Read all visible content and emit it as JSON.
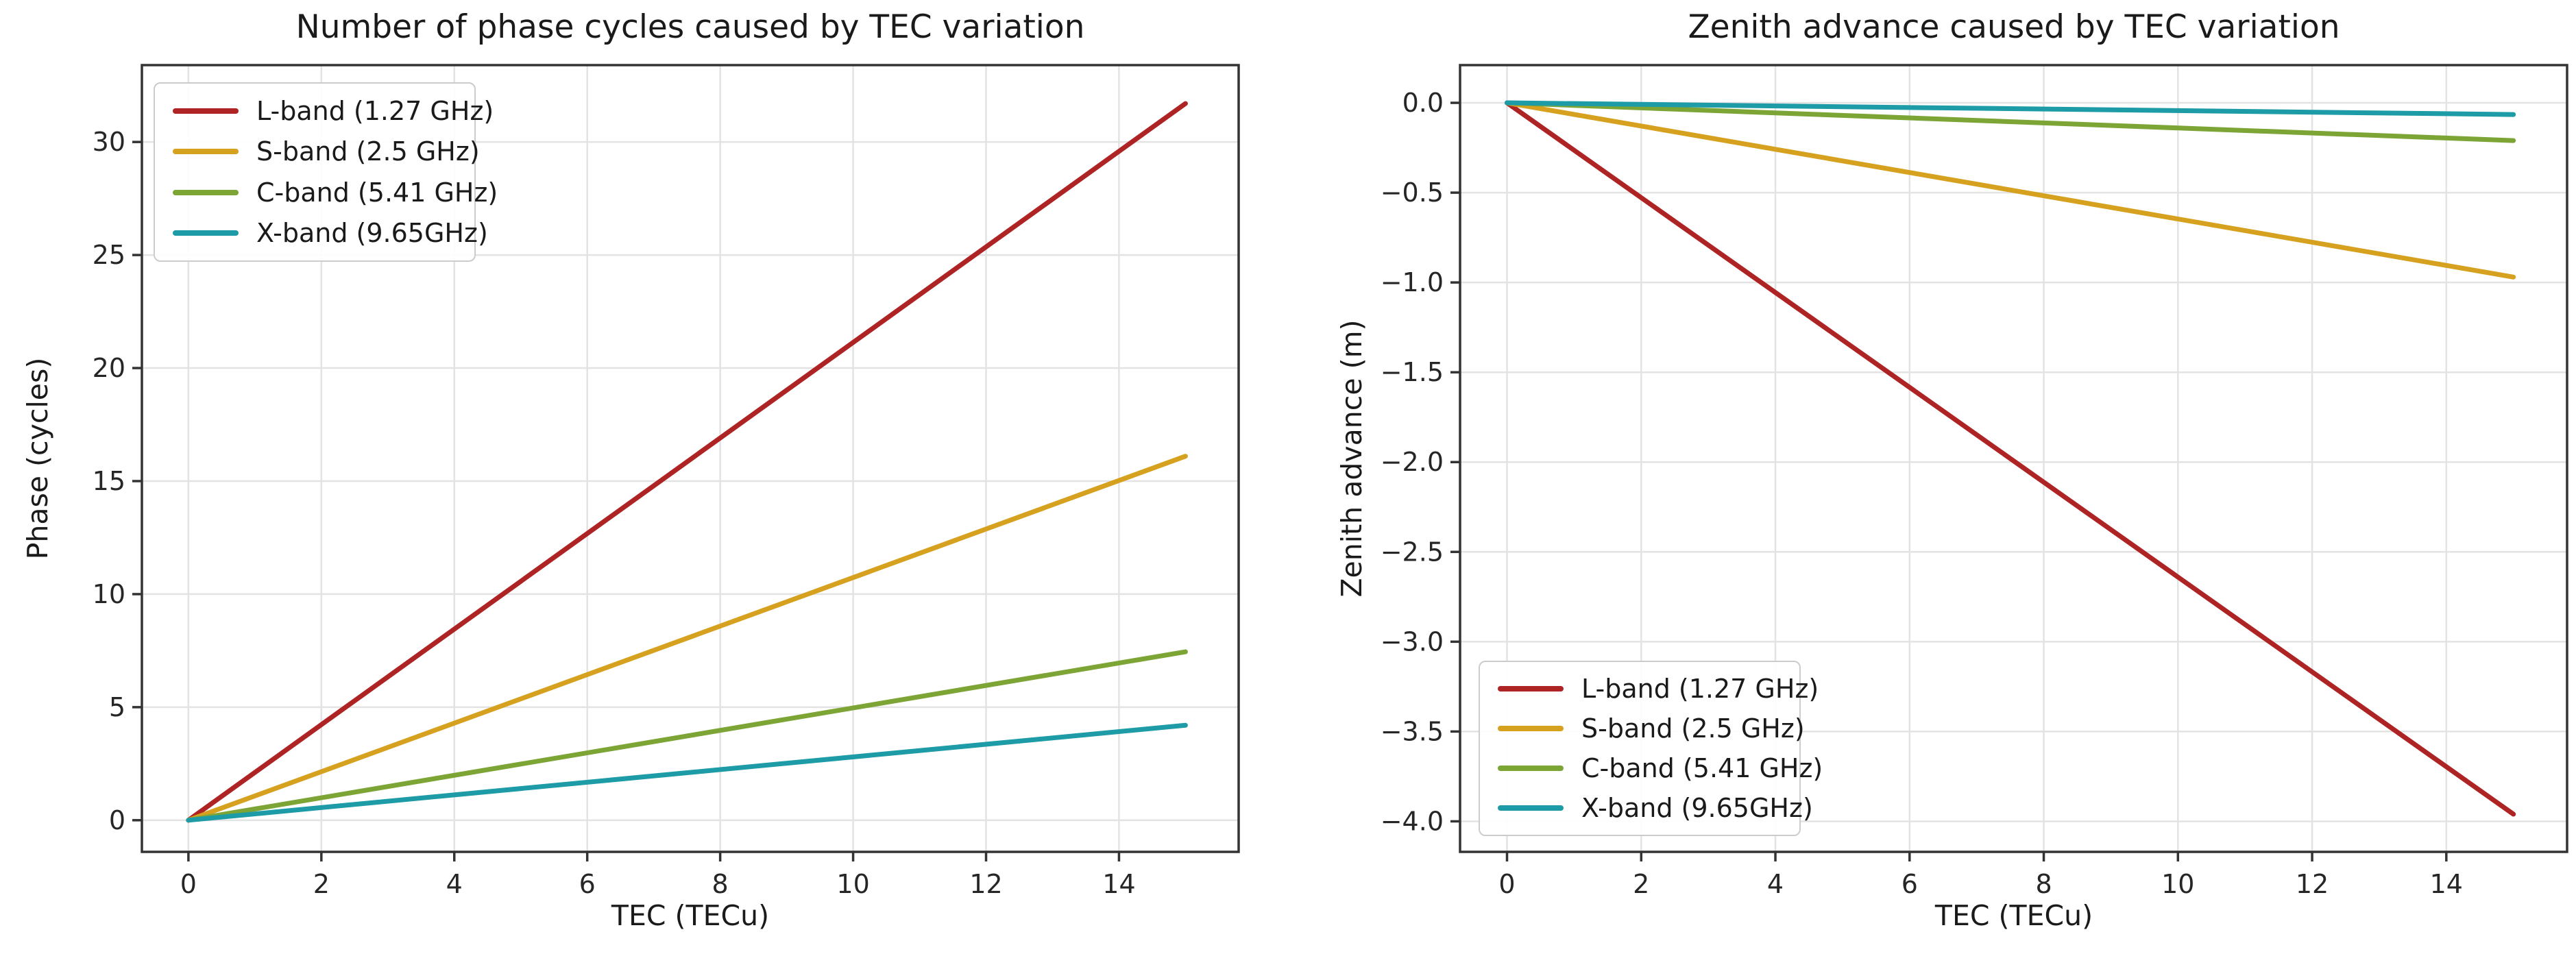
{
  "figure": {
    "background": "#ffffff"
  },
  "style": {
    "grid_color": "#e3e3e3",
    "spine_color": "#333333",
    "tick_color": "#333333",
    "text_color": "#262626",
    "legend_border": "#cccccc"
  },
  "chart_data": [
    {
      "type": "line",
      "title": "Number of phase cycles caused by TEC variation",
      "xlabel": "TEC (TECu)",
      "ylabel": "Phase (cycles)",
      "xlim": [
        -0.7,
        15.8
      ],
      "ylim": [
        -1.4,
        33.4
      ],
      "xticks": [
        0,
        2,
        4,
        6,
        8,
        10,
        12,
        14
      ],
      "yticks": [
        0,
        5,
        10,
        15,
        20,
        25,
        30
      ],
      "xtick_labels": [
        "0",
        "2",
        "4",
        "6",
        "8",
        "10",
        "12",
        "14"
      ],
      "ytick_labels": [
        "0",
        "5",
        "10",
        "15",
        "20",
        "25",
        "30"
      ],
      "grid": true,
      "legend_position": "upper left",
      "series": [
        {
          "name": "L-band (1.27 GHz)",
          "color": "#AE2323",
          "x": [
            0,
            15
          ],
          "y": [
            0,
            31.7
          ]
        },
        {
          "name": "S-band (2.5 GHz)",
          "color": "#D6A11E",
          "x": [
            0,
            15
          ],
          "y": [
            0,
            16.1
          ]
        },
        {
          "name": "C-band (5.41 GHz)",
          "color": "#7CA536",
          "x": [
            0,
            15
          ],
          "y": [
            0,
            7.45
          ]
        },
        {
          "name": "X-band (9.65GHz)",
          "color": "#1D9BA6",
          "x": [
            0,
            15
          ],
          "y": [
            0,
            4.2
          ]
        }
      ]
    },
    {
      "type": "line",
      "title": "Zenith advance caused by TEC variation",
      "xlabel": "TEC (TECu)",
      "ylabel": "Zenith advance (m)",
      "xlim": [
        -0.7,
        15.8
      ],
      "ylim": [
        -4.17,
        0.21
      ],
      "xticks": [
        0,
        2,
        4,
        6,
        8,
        10,
        12,
        14
      ],
      "yticks": [
        0,
        -0.5,
        -1,
        -1.5,
        -2,
        -2.5,
        -3,
        -3.5,
        -4
      ],
      "xtick_labels": [
        "0",
        "2",
        "4",
        "6",
        "8",
        "10",
        "12",
        "14"
      ],
      "ytick_labels": [
        "0.0",
        "−0.5",
        "−1.0",
        "−1.5",
        "−2.0",
        "−2.5",
        "−3.0",
        "−3.5",
        "−4.0"
      ],
      "grid": true,
      "legend_position": "lower left",
      "series": [
        {
          "name": "L-band (1.27 GHz)",
          "color": "#AE2323",
          "x": [
            0,
            15
          ],
          "y": [
            0,
            -3.96
          ]
        },
        {
          "name": "S-band (2.5 GHz)",
          "color": "#D6A11E",
          "x": [
            0,
            15
          ],
          "y": [
            0,
            -0.97
          ]
        },
        {
          "name": "C-band (5.41 GHz)",
          "color": "#7CA536",
          "x": [
            0,
            15
          ],
          "y": [
            0,
            -0.21
          ]
        },
        {
          "name": "X-band (9.65GHz)",
          "color": "#1D9BA6",
          "x": [
            0,
            15
          ],
          "y": [
            0,
            -0.065
          ]
        }
      ]
    }
  ]
}
